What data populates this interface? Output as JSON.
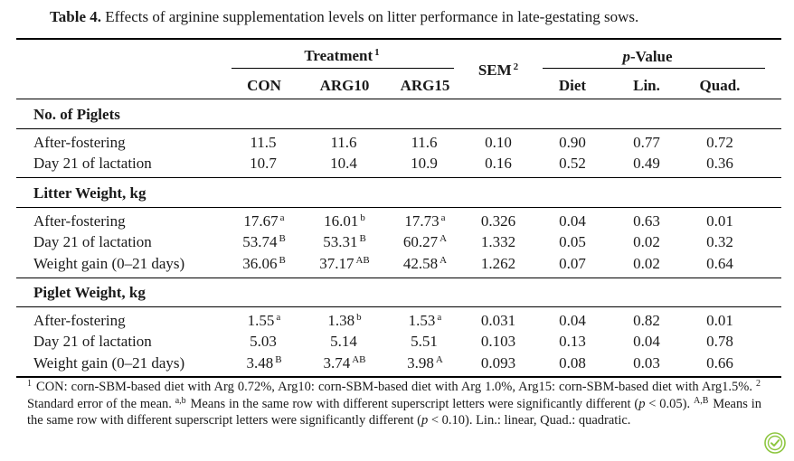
{
  "table": {
    "caption_label": "Table 4.",
    "caption_text": "Effects of arginine supplementation levels on litter performance in late-gestating sows.",
    "header": {
      "treatment": "Treatment",
      "treatment_sup": "1",
      "sem": "SEM",
      "sem_sup": "2",
      "p_value_italic": "p",
      "p_value_rest": "-Value",
      "columns": [
        "CON",
        "ARG10",
        "ARG15",
        "Diet",
        "Lin.",
        "Quad."
      ]
    },
    "sections": [
      {
        "title": "No. of Piglets",
        "rows": [
          {
            "label": "After-fostering",
            "con": "11.5",
            "con_sup": "",
            "arg10": "11.6",
            "arg10_sup": "",
            "arg15": "11.6",
            "arg15_sup": "",
            "sem": "0.10",
            "diet": "0.90",
            "lin": "0.77",
            "quad": "0.72"
          },
          {
            "label": "Day 21 of lactation",
            "con": "10.7",
            "con_sup": "",
            "arg10": "10.4",
            "arg10_sup": "",
            "arg15": "10.9",
            "arg15_sup": "",
            "sem": "0.16",
            "diet": "0.52",
            "lin": "0.49",
            "quad": "0.36"
          }
        ]
      },
      {
        "title": "Litter Weight, kg",
        "rows": [
          {
            "label": "After-fostering",
            "con": "17.67",
            "con_sup": "a",
            "arg10": "16.01",
            "arg10_sup": "b",
            "arg15": "17.73",
            "arg15_sup": "a",
            "sem": "0.326",
            "diet": "0.04",
            "lin": "0.63",
            "quad": "0.01"
          },
          {
            "label": "Day 21 of lactation",
            "con": "53.74",
            "con_sup": "B",
            "arg10": "53.31",
            "arg10_sup": "B",
            "arg15": "60.27",
            "arg15_sup": "A",
            "sem": "1.332",
            "diet": "0.05",
            "lin": "0.02",
            "quad": "0.32"
          },
          {
            "label": "Weight gain (0–21 days)",
            "con": "36.06",
            "con_sup": "B",
            "arg10": "37.17",
            "arg10_sup": "AB",
            "arg15": "42.58",
            "arg15_sup": "A",
            "sem": "1.262",
            "diet": "0.07",
            "lin": "0.02",
            "quad": "0.64"
          }
        ]
      },
      {
        "title": "Piglet Weight, kg",
        "rows": [
          {
            "label": "After-fostering",
            "con": "1.55",
            "con_sup": "a",
            "arg10": "1.38",
            "arg10_sup": "b",
            "arg15": "1.53",
            "arg15_sup": "a",
            "sem": "0.031",
            "diet": "0.04",
            "lin": "0.82",
            "quad": "0.01"
          },
          {
            "label": "Day 21 of lactation",
            "con": "5.03",
            "con_sup": "",
            "arg10": "5.14",
            "arg10_sup": "",
            "arg15": "5.51",
            "arg15_sup": "",
            "sem": "0.103",
            "diet": "0.13",
            "lin": "0.04",
            "quad": "0.78"
          },
          {
            "label": "Weight gain (0–21 days)",
            "con": "3.48",
            "con_sup": "B",
            "arg10": "3.74",
            "arg10_sup": "AB",
            "arg15": "3.98",
            "arg15_sup": "A",
            "sem": "0.093",
            "diet": "0.08",
            "lin": "0.03",
            "quad": "0.66"
          }
        ]
      }
    ],
    "footnote": {
      "s1_sup": "1",
      "s1": " CON: corn-SBM-based diet with Arg 0.72%, Arg10: corn-SBM-based diet with Arg 1.0%, Arg15: corn-SBM-based diet with Arg1.5%. ",
      "s2_sup": "2",
      "s2": " Standard error of the mean. ",
      "s3_sup": "a,b",
      "s3a": " Means in the same row with different superscript letters were significantly different (",
      "s3_p": "p",
      "s3b": " < 0.05). ",
      "s4_sup": "A,B",
      "s4a": " Means in the same row with different superscript letters were significantly different (",
      "s4_p": "p",
      "s4b": " < 0.10). Lin.: linear, Quad.: quadratic."
    }
  },
  "colors": {
    "text": "#1a1a1a",
    "rule": "#000000",
    "badge_green": "#8dc63f"
  },
  "icons": {
    "badge": "check-update-icon"
  }
}
